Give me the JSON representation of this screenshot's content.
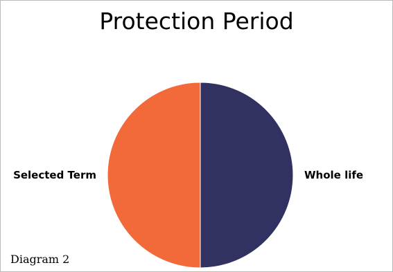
{
  "chart_data": {
    "type": "pie",
    "title": "Protection Period",
    "slices": [
      {
        "label": "Whole life",
        "value": 50,
        "color": "#313262"
      },
      {
        "label": "Selected Term",
        "value": 50,
        "color": "#f2693a"
      }
    ]
  },
  "caption": "Diagram 2"
}
